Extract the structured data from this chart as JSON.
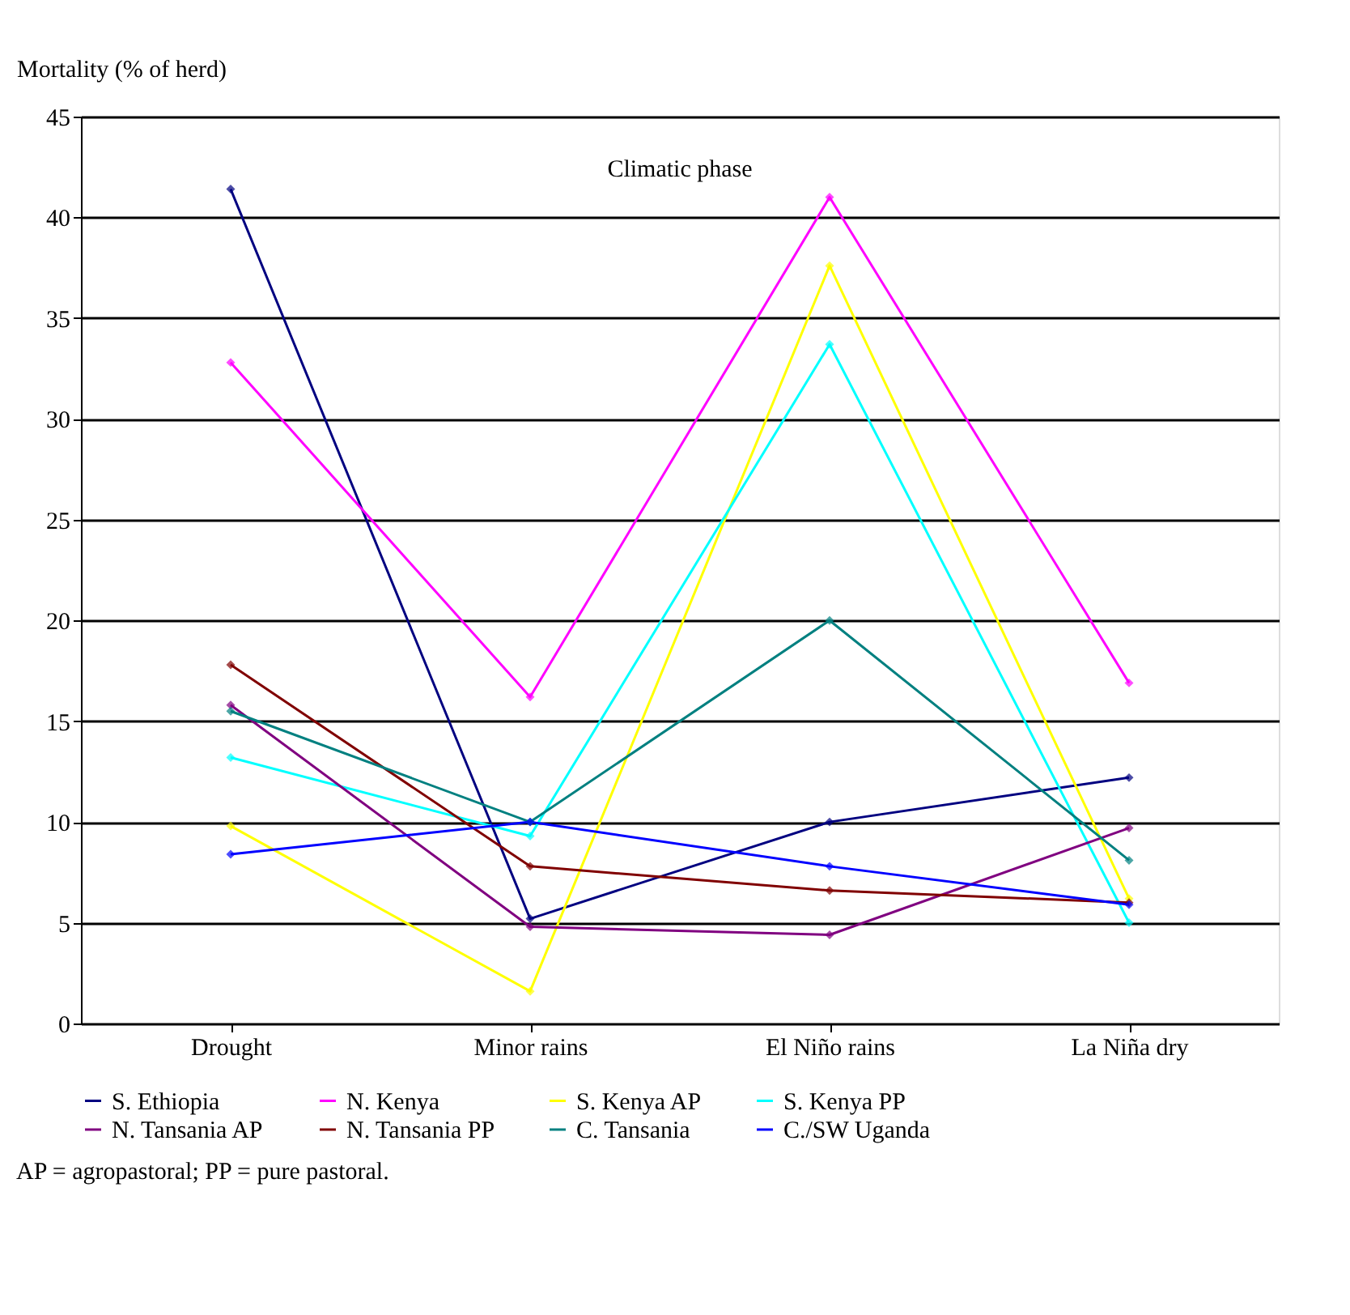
{
  "chart_data": {
    "type": "line",
    "ylabel": "Mortality (% of herd)",
    "xlabel": "Climatic phase",
    "categories": [
      "Drought",
      "Minor rains",
      "El Niño rains",
      "La Niña dry"
    ],
    "series": [
      {
        "name": "S. Ethiopia",
        "color": "#000080",
        "values": [
          41.4,
          5.2,
          10,
          12.2
        ]
      },
      {
        "name": "N. Kenya",
        "color": "#ff00ff",
        "values": [
          32.8,
          16.2,
          41,
          16.9
        ]
      },
      {
        "name": "S. Kenya AP",
        "color": "#ffff00",
        "values": [
          9.8,
          1.6,
          37.6,
          6.2
        ]
      },
      {
        "name": "S. Kenya PP",
        "color": "#00ffff",
        "values": [
          13.2,
          9.3,
          33.7,
          5.0
        ]
      },
      {
        "name": "N. Tansania AP",
        "color": "#800080",
        "values": [
          15.8,
          4.8,
          4.4,
          9.7
        ]
      },
      {
        "name": "N. Tansania PP",
        "color": "#800000",
        "values": [
          17.8,
          7.8,
          6.6,
          6.0
        ]
      },
      {
        "name": "C. Tansania",
        "color": "#008080",
        "values": [
          15.5,
          10,
          20,
          8.1
        ]
      },
      {
        "name": "C./SW Uganda",
        "color": "#0000ff",
        "values": [
          8.4,
          10,
          7.8,
          5.9
        ]
      }
    ],
    "ylim": [
      0,
      45
    ],
    "yticks": [
      0,
      5,
      10,
      15,
      20,
      25,
      30,
      35,
      40,
      45
    ],
    "grid": "y",
    "legend": "bottom",
    "marker": "diamond",
    "line_style": "solid",
    "annotations": [
      "AP = agropastoral; PP = pure pastoral."
    ]
  }
}
